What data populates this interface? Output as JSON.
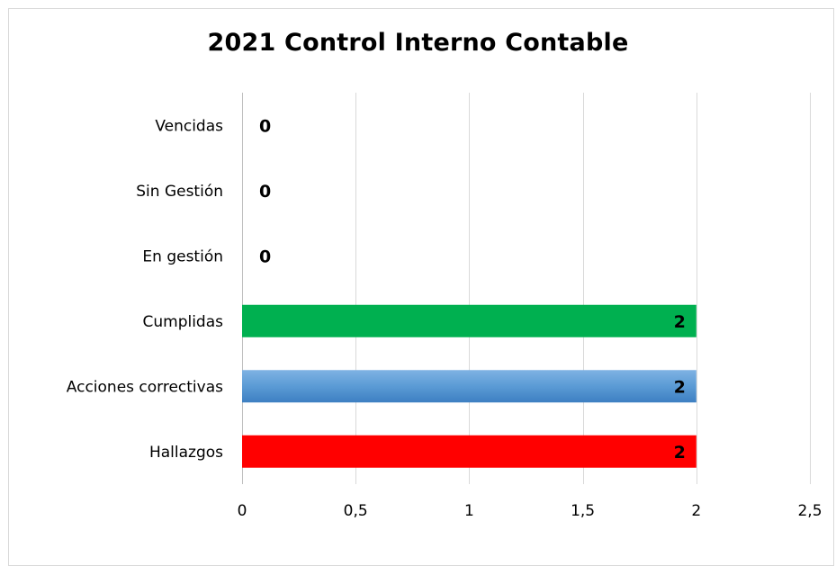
{
  "chart_data": {
    "type": "bar",
    "orientation": "horizontal",
    "title": "2021 Control Interno Contable",
    "categories": [
      "Vencidas",
      "Sin Gestión",
      "En gestión",
      "Cumplidas",
      "Acciones correctivas",
      "Hallazgos"
    ],
    "values": [
      0,
      0,
      0,
      2,
      2,
      2
    ],
    "data_labels": [
      "0",
      "0",
      "0",
      "2",
      "2",
      "2"
    ],
    "bar_colors": [
      "#00b050",
      "#00b050",
      "#00b050",
      "#00b050",
      "#5b9bd5",
      "#ff0000"
    ],
    "xlim": [
      0,
      2.5
    ],
    "x_ticks": [
      0,
      0.5,
      1,
      1.5,
      2,
      2.5
    ],
    "x_tick_labels": [
      "0",
      "0,5",
      "1",
      "1,5",
      "2",
      "2,5"
    ],
    "grid": true,
    "legend": "none"
  }
}
